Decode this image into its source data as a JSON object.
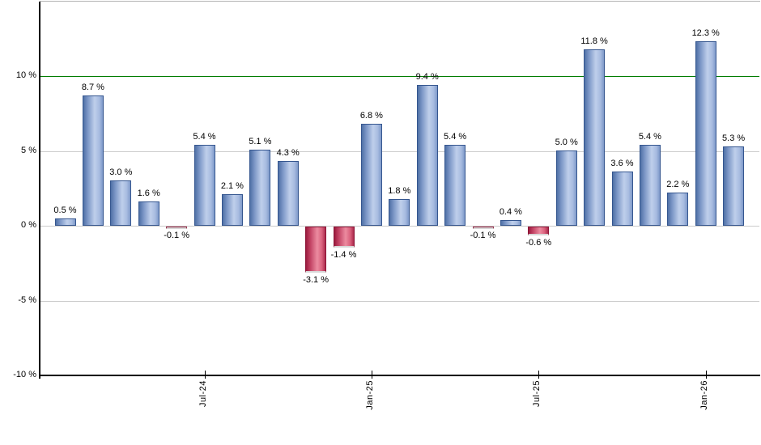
{
  "chart_data": {
    "type": "bar",
    "title": "",
    "values": [
      0.5,
      8.7,
      3.0,
      1.6,
      -0.1,
      5.4,
      2.1,
      5.1,
      4.3,
      -3.1,
      -1.4,
      6.8,
      1.8,
      9.4,
      5.4,
      -0.1,
      0.4,
      -0.6,
      5.0,
      11.8,
      3.6,
      5.4,
      2.2,
      12.3,
      5.3
    ],
    "bar_labels": [
      "0.5 %",
      "8.7 %",
      "3.0 %",
      "1.6 %",
      "-0.1 %",
      "5.4 %",
      "2.1 %",
      "5.1 %",
      "4.3 %",
      "-3.1 %",
      "-1.4 %",
      "6.8 %",
      "1.8 %",
      "9.4 %",
      "5.4 %",
      "-0.1 %",
      "0.4 %",
      "-0.6 %",
      "5.0 %",
      "11.8 %",
      "3.6 %",
      "5.4 %",
      "2.2 %",
      "12.3 %",
      "5.3 %"
    ],
    "x_ticks": [
      {
        "label": "Jul-24",
        "bar_index": 5
      },
      {
        "label": "Jan-25",
        "bar_index": 11
      },
      {
        "label": "Jul-25",
        "bar_index": 17
      },
      {
        "label": "Jan-26",
        "bar_index": 23
      }
    ],
    "y_ticks": [
      {
        "label": "10 %",
        "value": 10
      },
      {
        "label": "5 %",
        "value": 5
      },
      {
        "label": "0 %",
        "value": 0
      },
      {
        "label": "-5 %",
        "value": -5
      },
      {
        "label": "-10 %",
        "value": -10
      }
    ],
    "grid_values": [
      5,
      0,
      -5
    ],
    "reference_line": {
      "value": 10,
      "color": "#007c00"
    },
    "ylim": [
      -10,
      14.9
    ],
    "legend": null,
    "colors": {
      "positive_bar_dark": "#4f70a6",
      "positive_bar_light": "#bfcfeb",
      "positive_bar_border": "#35568f",
      "negative_bar_dark": "#9b1b3e",
      "negative_bar_light": "#ec8ba0",
      "negative_bar_border": "#8c1536",
      "gridline": "#cccccc",
      "axis": "#000000",
      "top_border": "#b3b3b3",
      "reference_green": "#007c00"
    }
  }
}
